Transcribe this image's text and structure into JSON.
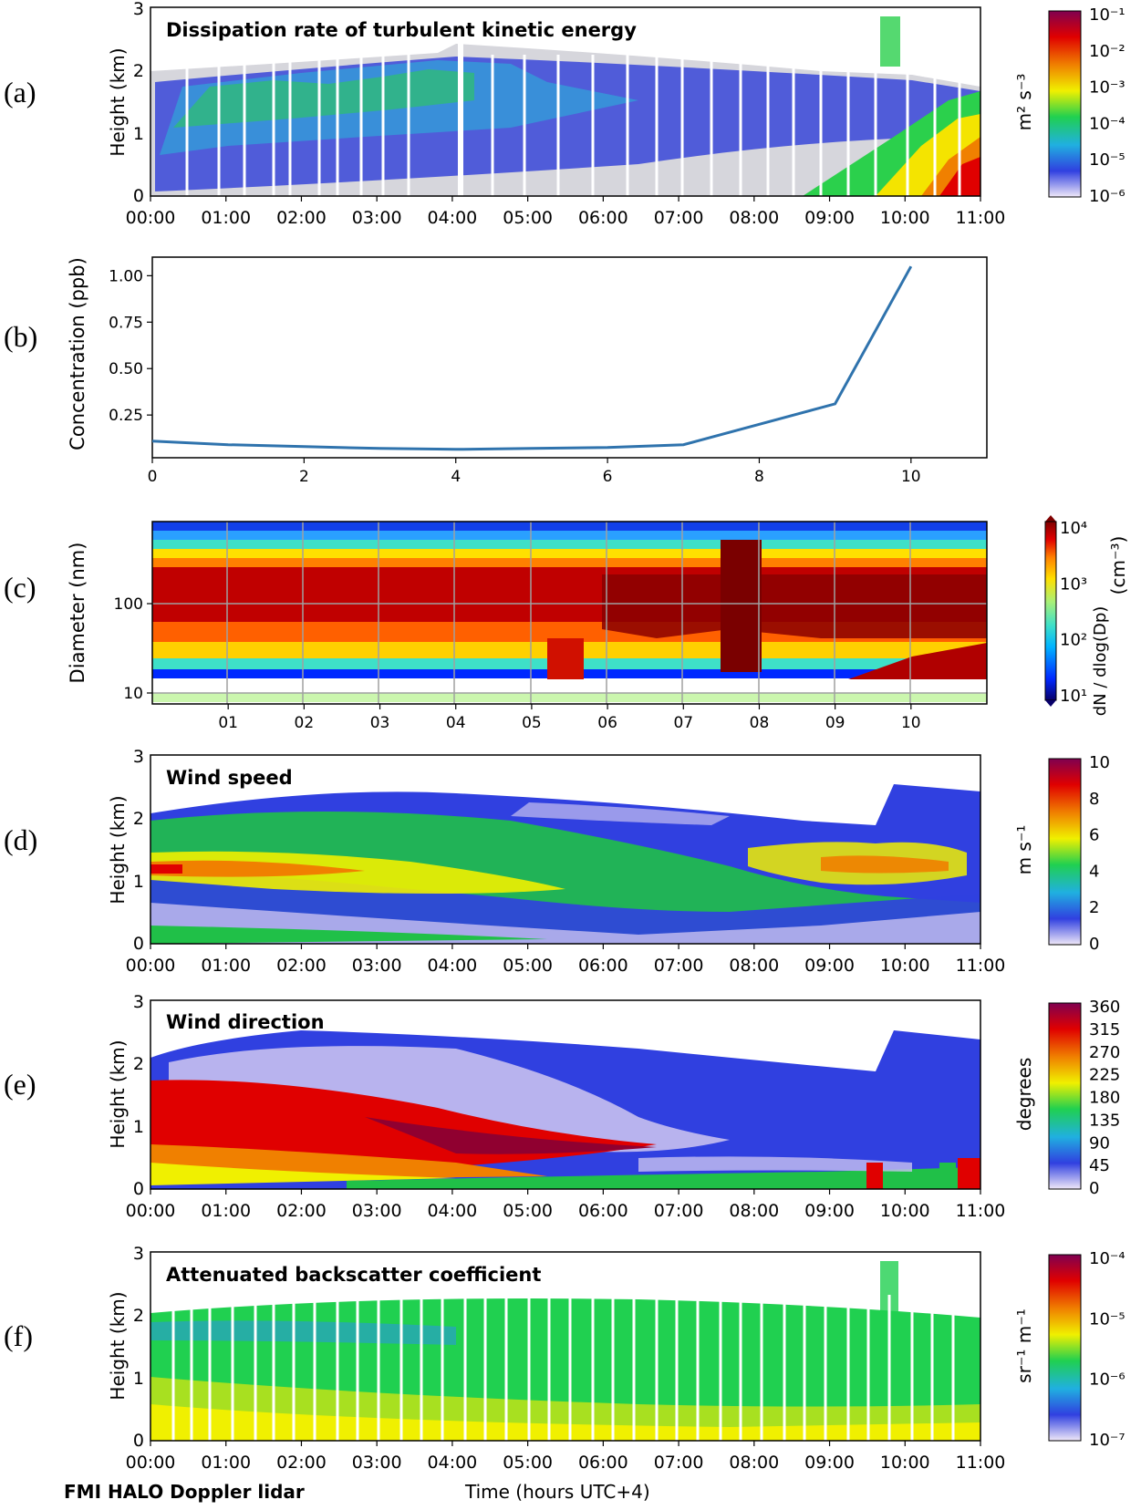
{
  "panels": [
    {
      "key": "a",
      "label": "(a)",
      "title": "Dissipation rate of turbulent kinetic energy",
      "ylabel": "Height (km)",
      "yticks": [
        "0",
        "1",
        "2",
        "3"
      ],
      "xticks": [
        "00:00",
        "01:00",
        "02:00",
        "03:00",
        "04:00",
        "05:00",
        "06:00",
        "07:00",
        "08:00",
        "09:00",
        "10:00",
        "11:00"
      ],
      "colorbar": {
        "ticks": [
          "10⁻¹",
          "10⁻²",
          "10⁻³",
          "10⁻⁴",
          "10⁻⁵",
          "10⁻⁶"
        ],
        "unit": "m² s⁻³",
        "colors": [
          "#f0e8f8",
          "#3040e0",
          "#20b0e0",
          "#20d050",
          "#f0f000",
          "#f08000",
          "#e00000",
          "#800050"
        ]
      }
    },
    {
      "key": "d",
      "label": "(d)",
      "title": "Wind speed",
      "ylabel": "Height (km)",
      "yticks": [
        "0",
        "1",
        "2",
        "3"
      ],
      "xticks": [
        "00:00",
        "01:00",
        "02:00",
        "03:00",
        "04:00",
        "05:00",
        "06:00",
        "07:00",
        "08:00",
        "09:00",
        "10:00",
        "11:00"
      ],
      "colorbar": {
        "ticks": [
          "10",
          "8",
          "6",
          "4",
          "2",
          "0"
        ],
        "unit": "m s⁻¹",
        "colors": [
          "#f0e8f8",
          "#3040e0",
          "#20b0e0",
          "#20d050",
          "#f0f000",
          "#f08000",
          "#e00000",
          "#800050"
        ]
      }
    },
    {
      "key": "e",
      "label": "(e)",
      "title": "Wind direction",
      "ylabel": "Height (km)",
      "yticks": [
        "0",
        "1",
        "2",
        "3"
      ],
      "xticks": [
        "00:00",
        "01:00",
        "02:00",
        "03:00",
        "04:00",
        "05:00",
        "06:00",
        "07:00",
        "08:00",
        "09:00",
        "10:00",
        "11:00"
      ],
      "colorbar": {
        "ticks": [
          "360",
          "315",
          "270",
          "225",
          "180",
          "135",
          "90",
          "45",
          "0"
        ],
        "unit": "degrees",
        "colors": [
          "#f0e8f8",
          "#3040e0",
          "#20b0e0",
          "#20d050",
          "#f0f000",
          "#f08000",
          "#e00000",
          "#800050"
        ]
      }
    },
    {
      "key": "f",
      "label": "(f)",
      "title": "Attenuated backscatter coefficient",
      "ylabel": "Height (km)",
      "yticks": [
        "0",
        "1",
        "2",
        "3"
      ],
      "xticks": [
        "00:00",
        "01:00",
        "02:00",
        "03:00",
        "04:00",
        "05:00",
        "06:00",
        "07:00",
        "08:00",
        "09:00",
        "10:00",
        "11:00"
      ],
      "colorbar": {
        "ticks": [
          "10⁻⁴",
          "10⁻⁵",
          "10⁻⁶",
          "10⁻⁷"
        ],
        "unit": "sr⁻¹ m⁻¹",
        "colors": [
          "#f0e8f8",
          "#3040e0",
          "#20b0e0",
          "#20d050",
          "#f0f000",
          "#f08000",
          "#e00000",
          "#800050"
        ]
      }
    }
  ],
  "chart_data": [
    {
      "type": "heatmap",
      "panel": "(a)",
      "title": "Dissipation rate of turbulent kinetic energy",
      "ylabel": "Height (km)",
      "xlim": [
        "00:00",
        "11:00"
      ],
      "ylim": [
        0,
        3
      ],
      "colorbar_label": "m² s⁻³",
      "colorbar_range": [
        "1e-6",
        "1e-1"
      ],
      "scale": "log"
    },
    {
      "type": "line",
      "panel": "(b)",
      "label": "(b)",
      "ylabel": "Concentration (ppb)",
      "xlim": [
        0,
        11
      ],
      "ylim": [
        0.02,
        1.1
      ],
      "xticks": [
        "0",
        "2",
        "4",
        "6",
        "8",
        "10"
      ],
      "yticks": [
        "0.25",
        "0.50",
        "0.75",
        "1.00"
      ],
      "color": "#2f73ad",
      "x": [
        0,
        1,
        2,
        3,
        4,
        5,
        6,
        7,
        8,
        9,
        10
      ],
      "y": [
        0.11,
        0.09,
        0.08,
        0.07,
        0.065,
        0.07,
        0.075,
        0.09,
        0.2,
        0.31,
        1.05
      ]
    },
    {
      "type": "heatmap",
      "panel": "(c)",
      "label": "(c)",
      "ylabel": "Diameter (nm)",
      "yscale": "log",
      "yticks": [
        "10",
        "100"
      ],
      "xticks": [
        "01",
        "02",
        "03",
        "04",
        "05",
        "06",
        "07",
        "08",
        "09",
        "10"
      ],
      "colorbar_label": "(cm⁻³)",
      "colorbar_fraction": "dN / dlog(Dp)",
      "colorbar_ticks": [
        "10⁴",
        "10³",
        "10²",
        "10¹"
      ],
      "colors": [
        "#08006a",
        "#0028ff",
        "#00b4ff",
        "#3ee0c8",
        "#a8f078",
        "#ffe000",
        "#ff8000",
        "#e00000",
        "#800000"
      ]
    },
    {
      "type": "heatmap",
      "panel": "(d)",
      "title": "Wind speed",
      "ylabel": "Height (km)",
      "xlim": [
        "00:00",
        "11:00"
      ],
      "ylim": [
        0,
        3
      ],
      "colorbar_label": "m s⁻¹",
      "colorbar_range": [
        0,
        10
      ]
    },
    {
      "type": "heatmap",
      "panel": "(e)",
      "title": "Wind direction",
      "ylabel": "Height (km)",
      "xlim": [
        "00:00",
        "11:00"
      ],
      "ylim": [
        0,
        3
      ],
      "colorbar_label": "degrees",
      "colorbar_range": [
        0,
        360
      ]
    },
    {
      "type": "heatmap",
      "panel": "(f)",
      "title": "Attenuated backscatter coefficient",
      "ylabel": "Height (km)",
      "xlim": [
        "00:00",
        "11:00"
      ],
      "ylim": [
        0,
        3
      ],
      "colorbar_label": "sr⁻¹ m⁻¹",
      "colorbar_range": [
        "1e-7",
        "1e-4"
      ],
      "scale": "log"
    }
  ],
  "footer": {
    "left": "FMI HALO Doppler lidar",
    "center": "Time (hours UTC+4)"
  }
}
